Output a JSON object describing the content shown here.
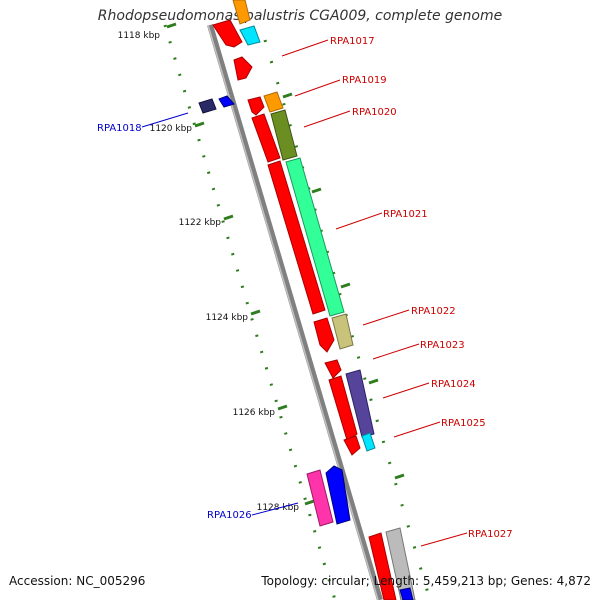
{
  "title": "Rhodopseudomonas palustris CGA009, complete genome",
  "accession": "Accession: NC_005296",
  "topology": "Topology: circular; Length: 5,459,213 bp; Genes: 4,872",
  "ruler_labels": [
    "1118 kbp",
    "1120 kbp",
    "1122 kbp",
    "1124 kbp",
    "1126 kbp",
    "1128 kbp"
  ],
  "gene_labels": {
    "RPA1017": "RPA1017",
    "RPA1018": "RPA1018",
    "RPA1019": "RPA1019",
    "RPA1020": "RPA1020",
    "RPA1021": "RPA1021",
    "RPA1022": "RPA1022",
    "RPA1023": "RPA1023",
    "RPA1024": "RPA1024",
    "RPA1025": "RPA1025",
    "RPA1026": "RPA1026",
    "RPA1027": "RPA1027"
  },
  "colors": {
    "backbone": "#808080",
    "forward_label": "#cc0000",
    "reverse_label": "#0000cc",
    "tick": "#2e7d1e",
    "gene_red": "#ff0000",
    "gene_orange": "#ff9900",
    "gene_cyan": "#00e5ff",
    "gene_olive": "#6b8e23",
    "gene_spring": "#33ff99",
    "gene_khaki": "#c8c27a",
    "gene_slate": "#554499",
    "gene_navy": "#2a2a66",
    "gene_blue": "#0000ff",
    "gene_pink": "#ff33aa",
    "gene_silver": "#bbbbbb"
  }
}
